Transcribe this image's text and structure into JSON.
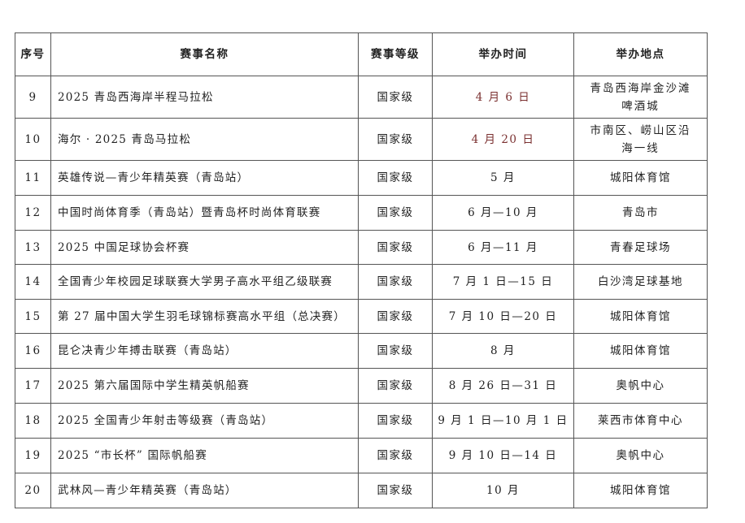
{
  "headers": {
    "no": "序号",
    "name": "赛事名称",
    "level": "赛事等级",
    "time": "举办时间",
    "place": "举办地点"
  },
  "rows": [
    {
      "no": "9",
      "name": "2025 青岛西海岸半程马拉松",
      "level": "国家级",
      "time": "4 月 6 日",
      "place": "青岛西海岸金沙滩啤酒城"
    },
    {
      "no": "10",
      "name": "海尔 · 2025 青岛马拉松",
      "level": "国家级",
      "time": "4 月 20 日",
      "place": "市南区、崂山区沿海一线"
    },
    {
      "no": "11",
      "name": "英雄传说—青少年精英赛（青岛站）",
      "level": "国家级",
      "time": "5 月",
      "place": "城阳体育馆"
    },
    {
      "no": "12",
      "name": "中国时尚体育季（青岛站）暨青岛杯时尚体育联赛",
      "level": "国家级",
      "time": "6 月—10 月",
      "place": "青岛市"
    },
    {
      "no": "13",
      "name": "2025 中国足球协会杯赛",
      "level": "国家级",
      "time": "6 月—11 月",
      "place": "青春足球场"
    },
    {
      "no": "14",
      "name": "全国青少年校园足球联赛大学男子高水平组乙级联赛",
      "level": "国家级",
      "time": "7 月 1 日—15 日",
      "place": "白沙湾足球基地"
    },
    {
      "no": "15",
      "name": "第 27 届中国大学生羽毛球锦标赛高水平组（总决赛）",
      "level": "国家级",
      "time": "7 月 10 日—20 日",
      "place": "城阳体育馆"
    },
    {
      "no": "16",
      "name": "昆仑决青少年搏击联赛（青岛站）",
      "level": "国家级",
      "time": "8 月",
      "place": "城阳体育馆"
    },
    {
      "no": "17",
      "name": "2025 第六届国际中学生精英帆船赛",
      "level": "国家级",
      "time": "8 月 26 日—31 日",
      "place": "奥帆中心"
    },
    {
      "no": "18",
      "name": "2025 全国青少年射击等级赛（青岛站）",
      "level": "国家级",
      "time": "9 月 1 日—10 月 1 日",
      "place": "莱西市体育中心"
    },
    {
      "no": "19",
      "name": "2025 “市长杯” 国际帆船赛",
      "level": "国家级",
      "time": "9 月 10 日—14 日",
      "place": "奥帆中心"
    },
    {
      "no": "20",
      "name": "武林风—青少年精英赛（青岛站）",
      "level": "国家级",
      "time": "10 月",
      "place": "城阳体育馆"
    }
  ]
}
